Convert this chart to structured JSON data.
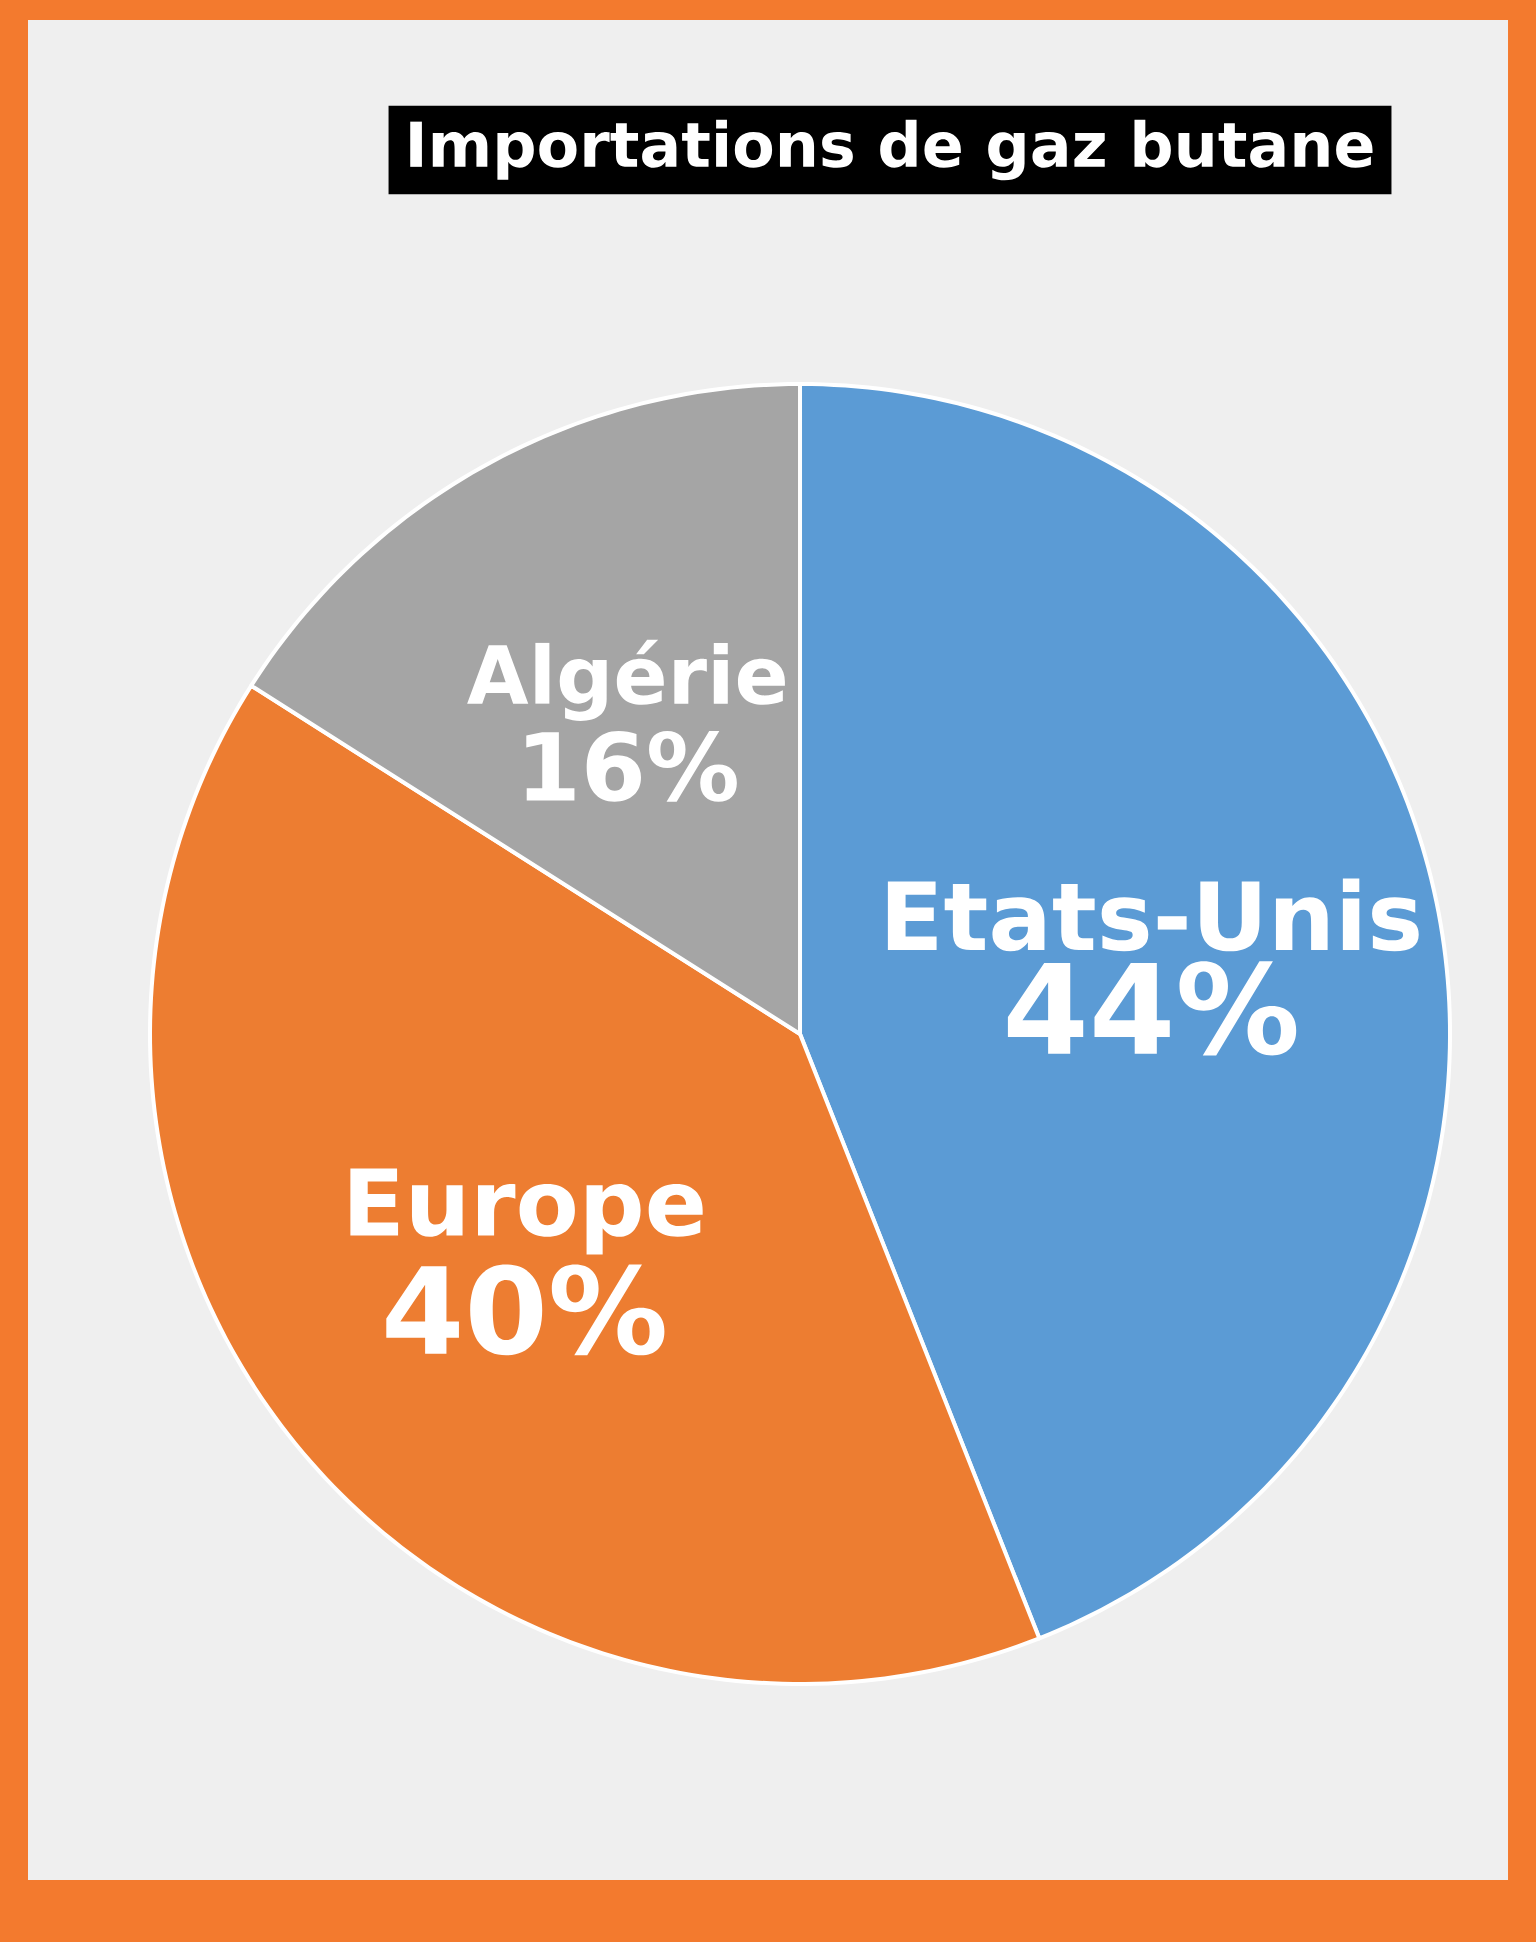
{
  "chart_data": {
    "type": "pie",
    "title": "Importations de gaz butane",
    "categories": [
      "Etats-Unis",
      "Europe",
      "Algérie"
    ],
    "values": [
      44,
      40,
      16
    ],
    "colors": [
      "#5b9bd5",
      "#ed7d31",
      "#a5a5a5"
    ],
    "value_labels": [
      "44%",
      "40%",
      "16%"
    ]
  }
}
